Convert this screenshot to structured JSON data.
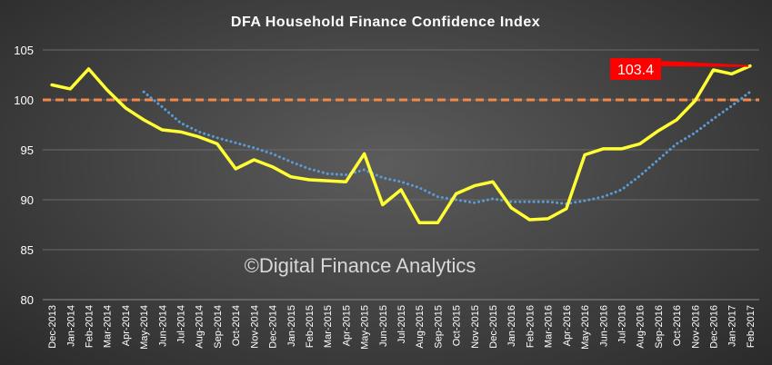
{
  "chart_data": {
    "type": "line",
    "title": "DFA Household Finance Confidence Index",
    "watermark": "©Digital Finance Analytics",
    "ylim": [
      80,
      105
    ],
    "yticks": [
      80,
      85,
      90,
      95,
      100,
      105
    ],
    "grid": "horizontal",
    "categories": [
      "Dec-2013",
      "Jan-2014",
      "Feb-2014",
      "Mar-2014",
      "Apr-2014",
      "May-2014",
      "Jun-2014",
      "Jul-2014",
      "Aug-2014",
      "Sep-2014",
      "Oct-2014",
      "Nov-2014",
      "Dec-2014",
      "Jan-2015",
      "Feb-2015",
      "Mar-2015",
      "Apr-2015",
      "May-2015",
      "Jun-2015",
      "Jul-2015",
      "Aug-2015",
      "Sep-2015",
      "Oct-2015",
      "Nov-2015",
      "Dec-2015",
      "Jan-2016",
      "Feb-2016",
      "Mar-2016",
      "Apr-2016",
      "May-2016",
      "Jun-2016",
      "Jul-2016",
      "Aug-2016",
      "Sep-2016",
      "Oct-2016",
      "Nov-2016",
      "Dec-2016",
      "Jan-2017",
      "Feb-2017"
    ],
    "series": [
      {
        "style": "solid",
        "color": "#ffff33",
        "values": [
          101.5,
          101.1,
          103.1,
          101.0,
          99.2,
          98.0,
          97.0,
          96.8,
          96.3,
          95.6,
          93.1,
          94.0,
          93.3,
          92.3,
          92.0,
          91.9,
          91.8,
          94.6,
          89.5,
          91.0,
          87.7,
          87.7,
          90.6,
          91.4,
          91.8,
          89.2,
          88.0,
          88.1,
          89.1,
          94.5,
          95.1,
          95.1,
          95.6,
          96.9,
          98.0,
          99.9,
          103.0,
          102.6,
          103.4
        ]
      },
      {
        "style": "dotted",
        "color": "#5b9bd5",
        "values": [
          null,
          null,
          null,
          null,
          null,
          100.8,
          99.3,
          97.7,
          96.8,
          96.2,
          95.7,
          95.2,
          94.6,
          93.8,
          93.1,
          92.6,
          92.5,
          93.0,
          92.2,
          91.8,
          91.2,
          90.3,
          90.0,
          89.7,
          90.1,
          89.8,
          89.8,
          89.8,
          89.6,
          89.9,
          90.3,
          91.0,
          92.4,
          94.0,
          95.6,
          96.7,
          98.1,
          99.4,
          100.8
        ]
      }
    ],
    "reference_line": {
      "value": 100,
      "color": "#f0894a",
      "style": "dashed"
    },
    "annotation": {
      "text": "103.4",
      "color": "#ff0000",
      "target_category": "Feb-2017",
      "target_value": 103.4
    }
  }
}
